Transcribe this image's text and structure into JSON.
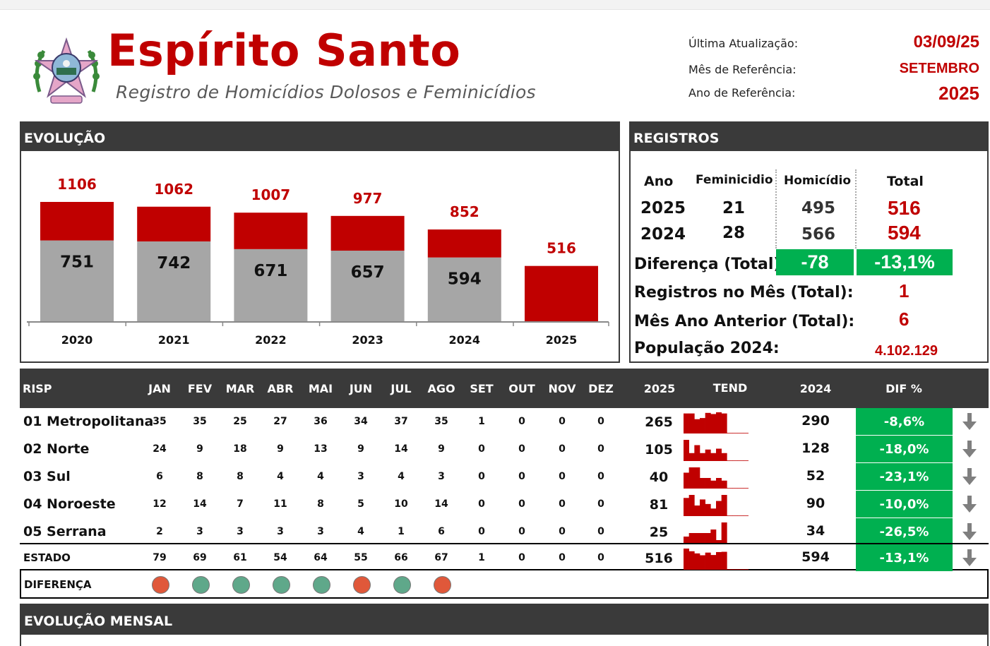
{
  "header": {
    "title": "Espírito Santo",
    "subtitle": "Registro de Homicídios Dolosos e Feminicídios",
    "meta": [
      {
        "label": "Última Atualização:",
        "value": "03/09/25"
      },
      {
        "label": "Mês de Referência:",
        "value": "SETEMBRO"
      },
      {
        "label": "Ano de Referência:",
        "value": "2025"
      }
    ]
  },
  "evolucao": {
    "title": "EVOLUÇÃO"
  },
  "chart_data": {
    "type": "bar",
    "stacked": true,
    "categories": [
      "2020",
      "2021",
      "2022",
      "2023",
      "2024",
      "2025"
    ],
    "totals": [
      1106,
      1062,
      1007,
      977,
      852,
      516
    ],
    "series": [
      {
        "values": [
          751,
          742,
          671,
          657,
          594,
          0
        ],
        "color": "#a6a6a6"
      },
      {
        "values": [
          355,
          320,
          336,
          320,
          258,
          516
        ],
        "color": "#c00000"
      }
    ],
    "inner_labels": [
      "751",
      "742",
      "671",
      "657",
      "594",
      ""
    ],
    "total_labels": [
      "1106",
      "1062",
      "1007",
      "977",
      "852",
      "516"
    ],
    "ylim": [
      0,
      1106
    ],
    "legend": "none",
    "grid": false
  },
  "registros": {
    "title": "REGISTROS",
    "headers": {
      "ano": "Ano",
      "fem": "Feminicidio",
      "hom": "Homicídio",
      "total": "Total"
    },
    "rows": [
      {
        "ano": "2025",
        "fem": "21",
        "hom": "495",
        "total": "516"
      },
      {
        "ano": "2024",
        "fem": "28",
        "hom": "566",
        "total": "594"
      }
    ],
    "diferenca": {
      "label": "Diferença (Total):",
      "abs": "-78",
      "pct": "-13,1%"
    },
    "mes": {
      "label": "Registros no Mês (Total):",
      "value": "1"
    },
    "mes_anterior": {
      "label": "Mês Ano Anterior (Total):",
      "value": "6"
    },
    "populacao": {
      "label": "População 2024:",
      "value": "4.102.129"
    }
  },
  "risp": {
    "headers": {
      "risp": "RISP",
      "months": [
        "JAN",
        "FEV",
        "MAR",
        "ABR",
        "MAI",
        "JUN",
        "JUL",
        "AGO",
        "SET",
        "OUT",
        "NOV",
        "DEZ"
      ],
      "y2025": "2025",
      "tend": "TEND",
      "y2024": "2024",
      "dif": "DIF %"
    },
    "rows": [
      {
        "name": "01 Metropolitana",
        "m": [
          "35",
          "35",
          "25",
          "27",
          "36",
          "34",
          "37",
          "35",
          "1",
          "0",
          "0",
          "0"
        ],
        "y2025": "265",
        "y2024": "290",
        "dif": "-8,6%"
      },
      {
        "name": "02 Norte",
        "m": [
          "24",
          "9",
          "18",
          "9",
          "13",
          "9",
          "14",
          "9",
          "0",
          "0",
          "0",
          "0"
        ],
        "y2025": "105",
        "y2024": "128",
        "dif": "-18,0%"
      },
      {
        "name": "03 Sul",
        "m": [
          "6",
          "8",
          "8",
          "4",
          "4",
          "3",
          "4",
          "3",
          "0",
          "0",
          "0",
          "0"
        ],
        "y2025": "40",
        "y2024": "52",
        "dif": "-23,1%"
      },
      {
        "name": "04 Noroeste",
        "m": [
          "12",
          "14",
          "7",
          "11",
          "8",
          "5",
          "10",
          "14",
          "0",
          "0",
          "0",
          "0"
        ],
        "y2025": "81",
        "y2024": "90",
        "dif": "-10,0%"
      },
      {
        "name": "05 Serrana",
        "m": [
          "2",
          "3",
          "3",
          "3",
          "3",
          "4",
          "1",
          "6",
          "0",
          "0",
          "0",
          "0"
        ],
        "y2025": "25",
        "y2024": "34",
        "dif": "-26,5%"
      }
    ],
    "estado": {
      "name": "ESTADO",
      "m": [
        "79",
        "69",
        "61",
        "54",
        "64",
        "55",
        "66",
        "67",
        "1",
        "0",
        "0",
        "0"
      ],
      "y2025": "516",
      "y2024": "594",
      "dif": "-13,1%"
    },
    "diferenca": {
      "label": "DIFERENÇA",
      "dots": [
        "up",
        "down",
        "down",
        "down",
        "down",
        "up",
        "down",
        "up"
      ]
    },
    "colors": {
      "up": "#e0583a",
      "down": "#5fa88a"
    }
  },
  "evolucao_mensal": {
    "title": "EVOLUÇÃO MENSAL"
  }
}
